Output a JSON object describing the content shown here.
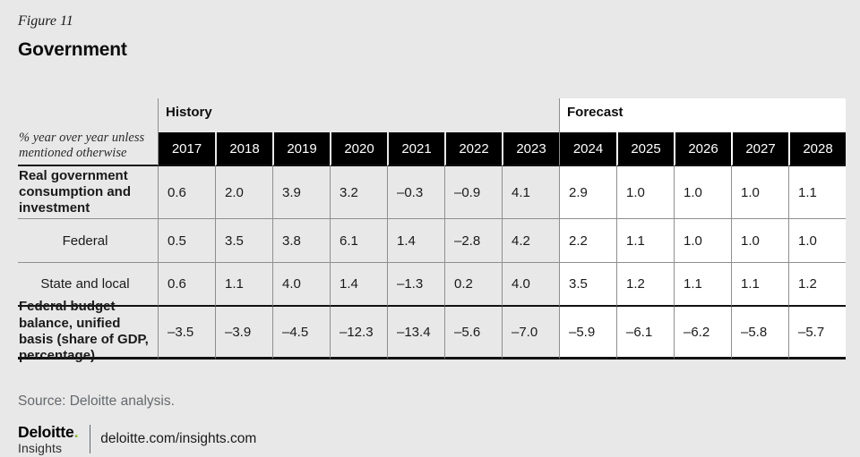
{
  "header": {
    "figure_label": "Figure 11",
    "title": "Government"
  },
  "table": {
    "note": "% year over year unless mentioned otherwise",
    "sections": {
      "history": "History",
      "forecast": "Forecast"
    },
    "years": [
      "2017",
      "2018",
      "2019",
      "2020",
      "2021",
      "2022",
      "2023",
      "2024",
      "2025",
      "2026",
      "2027",
      "2028"
    ],
    "rows": [
      {
        "label": "Real government consumption and investment",
        "values": [
          "0.6",
          "2.0",
          "3.9",
          "3.2",
          "–0.3",
          "–0.9",
          "4.1",
          "2.9",
          "1.0",
          "1.0",
          "1.0",
          "1.1"
        ]
      },
      {
        "label": "Federal",
        "values": [
          "0.5",
          "3.5",
          "3.8",
          "6.1",
          "1.4",
          "–2.8",
          "4.2",
          "2.2",
          "1.1",
          "1.0",
          "1.0",
          "1.0"
        ]
      },
      {
        "label": "State and local",
        "values": [
          "0.6",
          "1.1",
          "4.0",
          "1.4",
          "–1.3",
          "0.2",
          "4.0",
          "3.5",
          "1.2",
          "1.1",
          "1.1",
          "1.2"
        ]
      },
      {
        "label": "Federal budget balance, unified basis (share of GDP, percentage)",
        "values": [
          "–3.5",
          "–3.9",
          "–4.5",
          "–12.3",
          "–13.4",
          "–5.6",
          "–7.0",
          "–5.9",
          "–6.1",
          "–6.2",
          "–5.8",
          "–5.7"
        ]
      }
    ]
  },
  "footer": {
    "source": "Source: Deloitte analysis.",
    "brand": {
      "line1": "Deloitte",
      "dot": ".",
      "line2": "Insights"
    },
    "url": "deloitte.com/insights.com"
  },
  "colors": {
    "page_bg": "#e8e8e8",
    "header_cell_bg": "#000000",
    "forecast_bg": "#ffffff",
    "grid_line": "#8f8f8f",
    "accent_green": "#86bc25",
    "source_text": "#66696c"
  },
  "chart_data": {
    "type": "table",
    "title": "Government",
    "figure": "Figure 11",
    "unit_note": "% year over year unless mentioned otherwise",
    "column_groups": [
      {
        "label": "History",
        "columns": [
          "2017",
          "2018",
          "2019",
          "2020",
          "2021",
          "2022",
          "2023"
        ]
      },
      {
        "label": "Forecast",
        "columns": [
          "2024",
          "2025",
          "2026",
          "2027",
          "2028"
        ]
      }
    ],
    "categories": [
      "2017",
      "2018",
      "2019",
      "2020",
      "2021",
      "2022",
      "2023",
      "2024",
      "2025",
      "2026",
      "2027",
      "2028"
    ],
    "series": [
      {
        "name": "Real government consumption and investment",
        "values": [
          0.6,
          2.0,
          3.9,
          3.2,
          -0.3,
          -0.9,
          4.1,
          2.9,
          1.0,
          1.0,
          1.0,
          1.1
        ]
      },
      {
        "name": "Federal",
        "values": [
          0.5,
          3.5,
          3.8,
          6.1,
          1.4,
          -2.8,
          4.2,
          2.2,
          1.1,
          1.0,
          1.0,
          1.0
        ]
      },
      {
        "name": "State and local",
        "values": [
          0.6,
          1.1,
          4.0,
          1.4,
          -1.3,
          0.2,
          4.0,
          3.5,
          1.2,
          1.1,
          1.1,
          1.2
        ]
      },
      {
        "name": "Federal budget balance, unified basis (share of GDP, percentage)",
        "values": [
          -3.5,
          -3.9,
          -4.5,
          -12.3,
          -13.4,
          -5.6,
          -7.0,
          -5.9,
          -6.1,
          -6.2,
          -5.8,
          -5.7
        ]
      }
    ],
    "source": "Source: Deloitte analysis."
  }
}
